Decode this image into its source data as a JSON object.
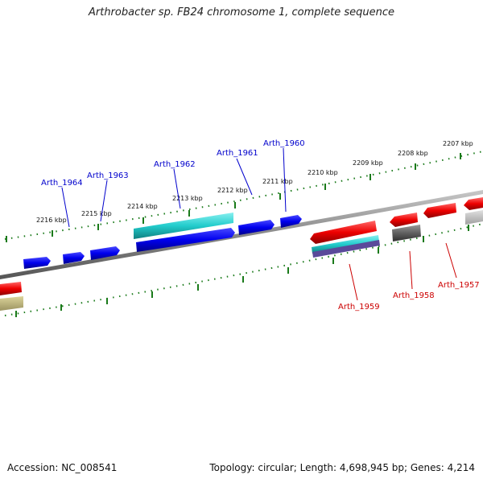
{
  "title": "Arthrobacter sp. FB24 chromosome 1, complete sequence",
  "footer": {
    "accession": "Accession: NC_008541",
    "summary": "Topology: circular; Length: 4,698,945 bp; Genes: 4,214"
  },
  "ticks": [
    "2207 kbp",
    "2208 kbp",
    "2209 kbp",
    "2210 kbp",
    "2211 kbp",
    "2212 kbp",
    "2213 kbp",
    "2214 kbp",
    "2215 kbp",
    "2216 kbp"
  ],
  "gene_labels_forward": [
    "Arth_1960",
    "Arth_1961",
    "Arth_1962",
    "Arth_1963",
    "Arth_1964"
  ],
  "gene_labels_reverse": [
    "Arth_1957",
    "Arth_1958",
    "Arth_1959"
  ],
  "colors": {
    "forward": "#0000ee",
    "forward_label": "#0000cc",
    "reverse": "#ee0000",
    "reverse_label": "#cc0000",
    "rna": "#22cccc",
    "pseudo": "#606060",
    "backbone": "#888888",
    "tick": "#1a7a1a",
    "other": "#bbb27a"
  }
}
